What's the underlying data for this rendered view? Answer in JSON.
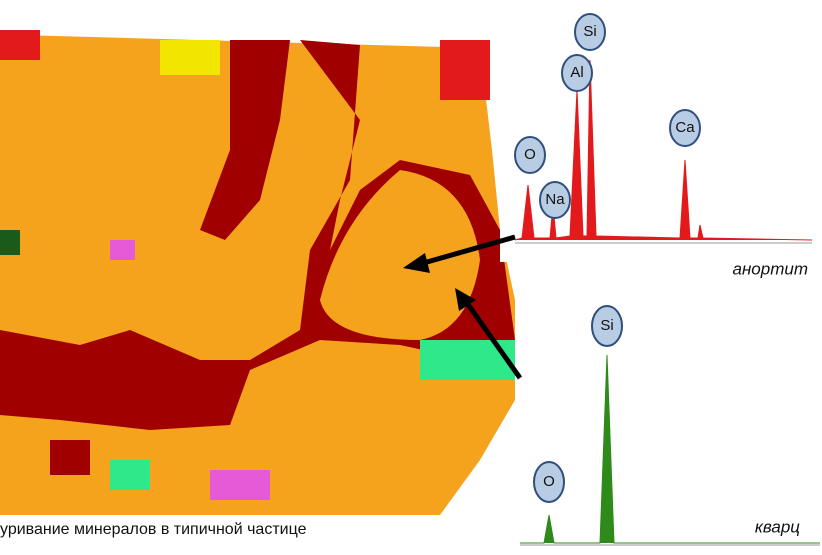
{
  "map": {
    "caption": "уривание минералов в типичной частице"
  },
  "spectra": [
    {
      "caption": "анортит",
      "peaks": [
        "O",
        "Na",
        "Al",
        "Si",
        "Ca"
      ]
    },
    {
      "caption": "кварц",
      "peaks": [
        "Si",
        "O"
      ]
    }
  ]
}
